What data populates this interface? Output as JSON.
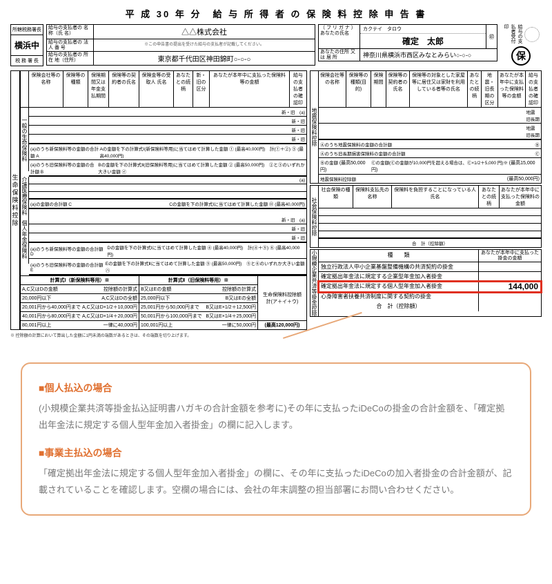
{
  "title": "平 成 30 年 分　給 与 所 得 者 の 保 険 料 控 除 申 告 書",
  "tax_office": {
    "top": "所轄税務署長",
    "name": "横浜中",
    "bottom": "税 務 署 長"
  },
  "payer": {
    "name_label": "給与の支払者の\n名 称（氏 名）",
    "name": "△△株式会社",
    "num_label": "給与の支払者の\n法 人 番 号",
    "num_note": "※この申告書の提出を受けた給与の支払者が記載してください。",
    "addr_label": "給与の支払者の\n所 在 地（住所）",
    "addr": "東京都千代田区神田錦町○-○-○"
  },
  "you": {
    "furigana_label": "（ フ リ ガ ナ ）",
    "furigana": "カクテイ　タロウ",
    "name_label": "あなたの氏名",
    "name": "確定　太郎",
    "addr_label": "あなたの住所\n又 は 居 所",
    "addr": "神奈川県横浜市西区みなとみらい○-○-○",
    "seal_note": "給与の支払者受付印",
    "ho": "保"
  },
  "left_label": "生命保険料控除",
  "life": {
    "header": [
      "保険会社等の名称",
      "保険等の種類",
      "保険期間又は年金支払期間",
      "保険等の契約者の氏名",
      "保険金等の受取人 氏名",
      "あなたとの続柄",
      "新・旧の区分",
      "あなたが本年中に支払った保険料等の金額",
      "給与の支払者の確認印"
    ],
    "general_label": "一般の生命保険料",
    "care_label": "介護医療保険料",
    "pension_label": "個人年金保険料",
    "new_tag": "新・旧",
    "a_tag": "(a)",
    "A": "(a)のうち新保険料等の金額の合計額 A",
    "B": "(a)のうち旧保険料等の金額の合計額 B",
    "C": "(a)の金額の合計額 C",
    "D": "(a)のうち新保険料等の金額の合計額 D",
    "E": "(a)のうち旧保険料等の金額の合計額 E",
    "max40": "(最高40,000円)",
    "max50": "(最高50,000円)",
    "max28": "(最高28,000円)",
    "max12": "(最高120,000円)",
    "f1_title": "計算式Ⅰ（新保険料等用）※",
    "f2_title": "計算式Ⅱ（旧保険料等用）※",
    "f1_head": "A,C又はDの金額",
    "f1_head2": "控除額の計算式",
    "f2_head": "B又はEの金額",
    "f2_head2": "控除額の計算式",
    "f1_rows": [
      [
        "20,000円以下",
        "A,C又はDの全額"
      ],
      [
        "20,001円から40,000円まで",
        "A,C又はD×1/2＋10,000円"
      ],
      [
        "40,001円から80,000円まで",
        "A,C又はD×1/4＋20,000円"
      ],
      [
        "80,001円以上",
        "一律に40,000円"
      ]
    ],
    "f2_rows": [
      [
        "25,000円以下",
        "B又はEの全額"
      ],
      [
        "25,001円から50,000円まで",
        "B又はE×1/2＋12,500円"
      ],
      [
        "50,001円から100,000円まで",
        "B又はE×1/4＋25,000円"
      ],
      [
        "100,001円以上",
        "一律に50,000円"
      ]
    ],
    "total_label": "生命保険料控除額\n計(ア＋イ＋ウ)",
    "total_max": "(最高120,000円)",
    "note": "※ 控除額の計算において算出した金額に1円未満の端数があるときは、その端数を切り上げます。"
  },
  "quake": {
    "vlabel": "地震保険料控除",
    "header": [
      "保険会社等の名称",
      "保険等の種類(目的)",
      "保険期間",
      "保険等の契約者の氏名",
      "保険等の対象とした家屋等に居住又は家財を利用している者等の氏名",
      "あなたとの続柄",
      "地震・旧長期の区分",
      "あなたが本年中に支払った保険料等の金額",
      "給与の支払者の確認印"
    ],
    "tag1": "地震",
    "tag2": "旧長期",
    "sumA": "Ⓐのうち地震保険料の金額の合計額",
    "sumB": "Ⓐのうち旧長期損害保険料の金額の合計額",
    "B": "Ⓑ",
    "C": "Ⓒ",
    "maxB": "(最高50,000円)",
    "c_note": "Ⓒの金額(Ⓒの金額が10,000円を超える場合は、Ⓒ×1/2＋5,000 円)※",
    "maxC": "(最高15,000円)",
    "total": "地震保険料控除額",
    "total_max": "(最高50,000円)"
  },
  "social": {
    "vlabel": "社会保険料控除",
    "h": [
      "社会保険の種類",
      "保険料支払先の名称",
      "保険料を負担することになっている人 氏名",
      "あなたとの続柄",
      "あなたが本年中に支払った保険料の金額"
    ],
    "total": "合　計（控除額）"
  },
  "small": {
    "vlabel": "小規模企業共済等掛金控除",
    "head_l": "種　　類",
    "head_r": "あなたが本年中に支払った掛金の金額",
    "rows": [
      {
        "l": "独立行政法人中小企業基盤整備機構の共済契約の掛金",
        "r": ""
      },
      {
        "l": "確定拠出年金法に規定する企業型年金加入者掛金",
        "r": ""
      },
      {
        "l": "確定拠出年金法に規定する個人型年金加入者掛金",
        "r": "144,000",
        "hl": true
      },
      {
        "l": "心身障害者扶養共済制度に関する契約の掛金",
        "r": ""
      }
    ],
    "total": "合　計（控除額）"
  },
  "callout": {
    "h1": "■個人払込の場合",
    "p1": "(小規模企業共済等掛金払込証明書ハガキの合計金額を参考に)その年に支払ったiDeCoの掛金の合計金額を、「確定拠出年金法に規定する個人型年金加入者掛金」の欄に記入します。",
    "h2": "■事業主払込の場合",
    "p2": "「確定拠出年金法に規定する個人型年金加入者掛金」の欄に、その年に支払ったiDeCoの加入者掛金の合計金額が、記載されていることを確認します。空欄の場合には、会社の年末調整の担当部署にお問い合わせください。"
  }
}
